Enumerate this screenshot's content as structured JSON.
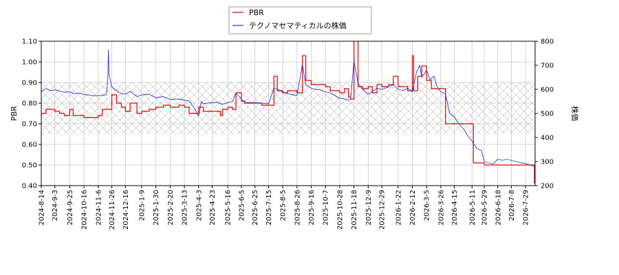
{
  "chart_data": {
    "type": "line",
    "title": "",
    "legend": {
      "placement": "top-center",
      "entries": [
        "PBR",
        "テクノマセマティカルの株価"
      ]
    },
    "y_left": {
      "label": "PBR",
      "range": [
        0.4,
        1.1
      ],
      "ticks": [
        "0.40",
        "0.50",
        "0.60",
        "0.70",
        "0.80",
        "0.90",
        "1.00",
        "1.10"
      ],
      "tick_values": [
        0.4,
        0.5,
        0.6,
        0.7,
        0.8,
        0.9,
        1.0,
        1.1
      ]
    },
    "y_right": {
      "label": "株価",
      "range": [
        200,
        800
      ],
      "ticks": [
        "200",
        "300",
        "400",
        "500",
        "600",
        "700",
        "800"
      ],
      "tick_values": [
        200,
        300,
        400,
        500,
        600,
        700,
        800
      ]
    },
    "x_axis": {
      "range": [
        "2024-08-14",
        "2026-08-12"
      ],
      "ticks": [
        "2024-8-14",
        "2024-9-3",
        "2024-9-25",
        "2024-10-16",
        "2024-11-6",
        "2024-11-26",
        "2024-12-16",
        "2025-1-9",
        "2025-1-30",
        "2025-2-20",
        "2025-3-13",
        "2025-4-3",
        "2025-4-23",
        "2025-5-16",
        "2025-6-5",
        "2025-6-25",
        "2025-7-15",
        "2025-8-5",
        "2025-8-26",
        "2025-9-16",
        "2025-10-7",
        "2025-10-28",
        "2025-11-18",
        "2025-12-9",
        "2025-12-29",
        "2026-1-22",
        "2026-2-12",
        "2026-3-5",
        "2026-3-26",
        "2026-4-15",
        "2026-5-11",
        "2026-5-29",
        "2026-6-18",
        "2026-7-8",
        "2026-7-29"
      ]
    },
    "grid": true,
    "shaded_band": {
      "axis": "left",
      "from": 0.65,
      "to": 0.9,
      "pattern": "crosshatch"
    },
    "series": [
      {
        "name": "PBR",
        "axis": "left",
        "color": "#dd0000",
        "step": true,
        "points": [
          [
            "2024-08-14",
            0.75
          ],
          [
            "2024-08-21",
            0.77
          ],
          [
            "2024-09-03",
            0.76
          ],
          [
            "2024-09-10",
            0.75
          ],
          [
            "2024-09-17",
            0.74
          ],
          [
            "2024-09-25",
            0.77
          ],
          [
            "2024-09-30",
            0.74
          ],
          [
            "2024-10-08",
            0.74
          ],
          [
            "2024-10-16",
            0.73
          ],
          [
            "2024-10-28",
            0.73
          ],
          [
            "2024-11-06",
            0.74
          ],
          [
            "2024-11-12",
            0.77
          ],
          [
            "2024-11-20",
            0.77
          ],
          [
            "2024-11-26",
            0.84
          ],
          [
            "2024-12-03",
            0.8
          ],
          [
            "2024-12-10",
            0.78
          ],
          [
            "2024-12-16",
            0.76
          ],
          [
            "2024-12-23",
            0.8
          ],
          [
            "2025-01-02",
            0.75
          ],
          [
            "2025-01-09",
            0.76
          ],
          [
            "2025-01-20",
            0.77
          ],
          [
            "2025-01-30",
            0.78
          ],
          [
            "2025-02-10",
            0.79
          ],
          [
            "2025-02-20",
            0.78
          ],
          [
            "2025-03-05",
            0.79
          ],
          [
            "2025-03-13",
            0.78
          ],
          [
            "2025-03-20",
            0.75
          ],
          [
            "2025-04-03",
            0.78
          ],
          [
            "2025-04-10",
            0.76
          ],
          [
            "2025-04-23",
            0.76
          ],
          [
            "2025-05-05",
            0.74
          ],
          [
            "2025-05-08",
            0.77
          ],
          [
            "2025-05-16",
            0.78
          ],
          [
            "2025-05-23",
            0.77
          ],
          [
            "2025-05-28",
            0.85
          ],
          [
            "2025-06-05",
            0.81
          ],
          [
            "2025-06-10",
            0.8
          ],
          [
            "2025-06-25",
            0.8
          ],
          [
            "2025-07-05",
            0.79
          ],
          [
            "2025-07-15",
            0.79
          ],
          [
            "2025-07-23",
            0.93
          ],
          [
            "2025-07-28",
            0.86
          ],
          [
            "2025-08-05",
            0.85
          ],
          [
            "2025-08-12",
            0.86
          ],
          [
            "2025-08-26",
            0.85
          ],
          [
            "2025-09-03",
            1.03
          ],
          [
            "2025-09-08",
            0.91
          ],
          [
            "2025-09-16",
            0.89
          ],
          [
            "2025-09-29",
            0.89
          ],
          [
            "2025-10-07",
            0.88
          ],
          [
            "2025-10-14",
            0.86
          ],
          [
            "2025-10-28",
            0.85
          ],
          [
            "2025-11-04",
            0.87
          ],
          [
            "2025-11-10",
            0.83
          ],
          [
            "2025-11-13",
            0.82
          ],
          [
            "2025-11-18",
            1.1
          ],
          [
            "2025-11-24",
            0.88
          ],
          [
            "2025-12-01",
            0.87
          ],
          [
            "2025-12-09",
            0.88
          ],
          [
            "2025-12-15",
            0.85
          ],
          [
            "2025-12-22",
            0.89
          ],
          [
            "2025-12-29",
            0.88
          ],
          [
            "2026-01-08",
            0.89
          ],
          [
            "2026-01-15",
            0.93
          ],
          [
            "2026-01-22",
            0.88
          ],
          [
            "2026-01-29",
            0.88
          ],
          [
            "2026-02-05",
            0.86
          ],
          [
            "2026-02-12",
            1.03
          ],
          [
            "2026-02-14",
            0.86
          ],
          [
            "2026-02-20",
            0.93
          ],
          [
            "2026-02-26",
            0.98
          ],
          [
            "2026-03-05",
            0.91
          ],
          [
            "2026-03-12",
            0.87
          ],
          [
            "2026-03-26",
            0.87
          ],
          [
            "2026-04-02",
            0.7
          ],
          [
            "2026-04-15",
            0.7
          ],
          [
            "2026-05-11",
            0.7
          ],
          [
            "2026-05-13",
            0.51
          ],
          [
            "2026-05-29",
            0.5
          ],
          [
            "2026-06-18",
            0.5
          ],
          [
            "2026-07-08",
            0.5
          ],
          [
            "2026-07-29",
            0.5
          ],
          [
            "2026-08-09",
            0.5
          ],
          [
            "2026-08-11",
            0.41
          ]
        ]
      },
      {
        "name": "テクノマセマティカルの株価",
        "axis": "right",
        "color": "#3333cc",
        "step": false,
        "points": [
          [
            "2024-08-14",
            590
          ],
          [
            "2024-08-21",
            603
          ],
          [
            "2024-08-28",
            595
          ],
          [
            "2024-09-03",
            598
          ],
          [
            "2024-09-10",
            593
          ],
          [
            "2024-09-17",
            588
          ],
          [
            "2024-09-25",
            590
          ],
          [
            "2024-10-02",
            582
          ],
          [
            "2024-10-09",
            585
          ],
          [
            "2024-10-16",
            578
          ],
          [
            "2024-10-23",
            577
          ],
          [
            "2024-10-28",
            574
          ],
          [
            "2024-11-06",
            574
          ],
          [
            "2024-11-12",
            575
          ],
          [
            "2024-11-18",
            578
          ],
          [
            "2024-11-20",
            640
          ],
          [
            "2024-11-21",
            765
          ],
          [
            "2024-11-22",
            660
          ],
          [
            "2024-11-26",
            610
          ],
          [
            "2024-12-03",
            595
          ],
          [
            "2024-12-10",
            582
          ],
          [
            "2024-12-16",
            580
          ],
          [
            "2024-12-23",
            592
          ],
          [
            "2025-01-02",
            570
          ],
          [
            "2025-01-09",
            577
          ],
          [
            "2025-01-20",
            580
          ],
          [
            "2025-01-30",
            565
          ],
          [
            "2025-02-10",
            570
          ],
          [
            "2025-02-20",
            558
          ],
          [
            "2025-03-05",
            560
          ],
          [
            "2025-03-13",
            555
          ],
          [
            "2025-03-20",
            552
          ],
          [
            "2025-03-28",
            520
          ],
          [
            "2025-04-03",
            490
          ],
          [
            "2025-04-07",
            550
          ],
          [
            "2025-04-10",
            540
          ],
          [
            "2025-04-17",
            543
          ],
          [
            "2025-04-23",
            545
          ],
          [
            "2025-04-30",
            547
          ],
          [
            "2025-05-08",
            538
          ],
          [
            "2025-05-16",
            545
          ],
          [
            "2025-05-23",
            550
          ],
          [
            "2025-05-28",
            585
          ],
          [
            "2025-06-05",
            560
          ],
          [
            "2025-06-10",
            545
          ],
          [
            "2025-06-25",
            545
          ],
          [
            "2025-07-05",
            543
          ],
          [
            "2025-07-15",
            540
          ],
          [
            "2025-07-23",
            605
          ],
          [
            "2025-07-28",
            600
          ],
          [
            "2025-08-05",
            590
          ],
          [
            "2025-08-12",
            582
          ],
          [
            "2025-08-19",
            578
          ],
          [
            "2025-08-26",
            575
          ],
          [
            "2025-09-03",
            705
          ],
          [
            "2025-09-08",
            618
          ],
          [
            "2025-09-16",
            605
          ],
          [
            "2025-09-22",
            600
          ],
          [
            "2025-09-29",
            598
          ],
          [
            "2025-10-07",
            590
          ],
          [
            "2025-10-14",
            585
          ],
          [
            "2025-10-28",
            563
          ],
          [
            "2025-11-04",
            560
          ],
          [
            "2025-11-10",
            555
          ],
          [
            "2025-11-13",
            560
          ],
          [
            "2025-11-18",
            720
          ],
          [
            "2025-11-24",
            625
          ],
          [
            "2025-12-01",
            600
          ],
          [
            "2025-12-09",
            580
          ],
          [
            "2025-12-15",
            590
          ],
          [
            "2025-12-22",
            605
          ],
          [
            "2025-12-29",
            600
          ],
          [
            "2026-01-08",
            610
          ],
          [
            "2026-01-15",
            620
          ],
          [
            "2026-01-22",
            600
          ],
          [
            "2026-01-29",
            595
          ],
          [
            "2026-02-05",
            605
          ],
          [
            "2026-02-12",
            590
          ],
          [
            "2026-02-18",
            670
          ],
          [
            "2026-02-23",
            700
          ],
          [
            "2026-02-26",
            650
          ],
          [
            "2026-03-05",
            680
          ],
          [
            "2026-03-10",
            640
          ],
          [
            "2026-03-16",
            655
          ],
          [
            "2026-03-20",
            615
          ],
          [
            "2026-03-26",
            590
          ],
          [
            "2026-04-02",
            580
          ],
          [
            "2026-04-08",
            500
          ],
          [
            "2026-04-15",
            485
          ],
          [
            "2026-04-22",
            455
          ],
          [
            "2026-04-30",
            430
          ],
          [
            "2026-05-04",
            410
          ],
          [
            "2026-05-11",
            385
          ],
          [
            "2026-05-18",
            355
          ],
          [
            "2026-05-25",
            345
          ],
          [
            "2026-05-29",
            300
          ],
          [
            "2026-06-04",
            295
          ],
          [
            "2026-06-11",
            290
          ],
          [
            "2026-06-18",
            310
          ],
          [
            "2026-06-25",
            305
          ],
          [
            "2026-07-01",
            310
          ],
          [
            "2026-07-08",
            305
          ],
          [
            "2026-07-15",
            300
          ],
          [
            "2026-07-22",
            295
          ],
          [
            "2026-07-29",
            292
          ],
          [
            "2026-08-05",
            285
          ],
          [
            "2026-08-11",
            280
          ]
        ]
      }
    ]
  }
}
